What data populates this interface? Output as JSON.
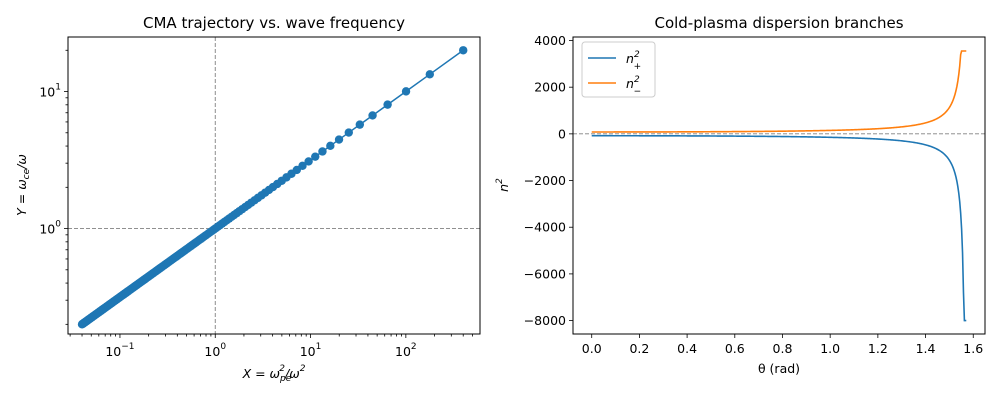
{
  "chart_data": [
    {
      "type": "scatter",
      "title": "CMA trajectory vs. wave frequency",
      "xlabel": {
        "base": "X = ω",
        "sub": "pe",
        "sup": "2",
        "rest": "/ω",
        "sup2": "2"
      },
      "ylabel": {
        "base": "Y = ω",
        "sub": "ce",
        "rest": "/ω"
      },
      "xscale": "log",
      "yscale": "log",
      "xlim": [
        0.0285,
        600
      ],
      "ylim": [
        0.17,
        25
      ],
      "xticks": [
        0.1,
        1,
        10,
        100
      ],
      "xtick_labels": [
        {
          "base": "10",
          "exp": "−1"
        },
        {
          "base": "10",
          "exp": "0"
        },
        {
          "base": "10",
          "exp": "1"
        },
        {
          "base": "10",
          "exp": "2"
        }
      ],
      "yticks": [
        1,
        10
      ],
      "ytick_labels": [
        {
          "base": "10",
          "exp": "0"
        },
        {
          "base": "10",
          "exp": "1"
        }
      ],
      "reference_lines": {
        "x": 1,
        "y": 1
      },
      "series": [
        {
          "description": "Y = ω_ce/ω vs X = ω_pe²/ω², points with connecting line",
          "w_min": 0.05,
          "w_max": 5,
          "n_points": 200,
          "relation": "X = w^-2 (ω_pe = 1), Y = w^-1 (ω_ce = 1)",
          "color": "#1f77b4"
        }
      ],
      "grid": false
    },
    {
      "type": "line",
      "title": "Cold-plasma dispersion branches",
      "xlabel": "θ (rad)",
      "ylabel": {
        "base": "n",
        "sup": "2"
      },
      "xlim": [
        -0.0785,
        1.6493
      ],
      "ylim": [
        -8575,
        4150
      ],
      "xticks": [
        0.0,
        0.2,
        0.4,
        0.6,
        0.8,
        1.0,
        1.2,
        1.4,
        1.6
      ],
      "xtick_labels": [
        "0.0",
        "0.2",
        "0.4",
        "0.6",
        "0.8",
        "1.0",
        "1.2",
        "1.4",
        "1.6"
      ],
      "yticks": [
        -8000,
        -6000,
        -4000,
        -2000,
        0,
        2000,
        4000
      ],
      "ytick_labels": [
        "−8000",
        "−6000",
        "−4000",
        "−2000",
        "0",
        "2000",
        "4000"
      ],
      "reference_lines": {
        "y": 0
      },
      "series": [
        {
          "name": {
            "base": "n",
            "sup": "2",
            "sub": "+"
          },
          "color": "#1f77b4",
          "x_range": [
            0,
            1.5708
          ],
          "start_value": -80,
          "end_value": -8000
        },
        {
          "name": {
            "base": "n",
            "sup": "2",
            "sub": "−"
          },
          "color": "#ff7f0e",
          "x_range": [
            0,
            1.5708
          ],
          "start_value": 80,
          "end_value": 3550
        }
      ],
      "legend": "upper-left",
      "grid": false
    }
  ]
}
